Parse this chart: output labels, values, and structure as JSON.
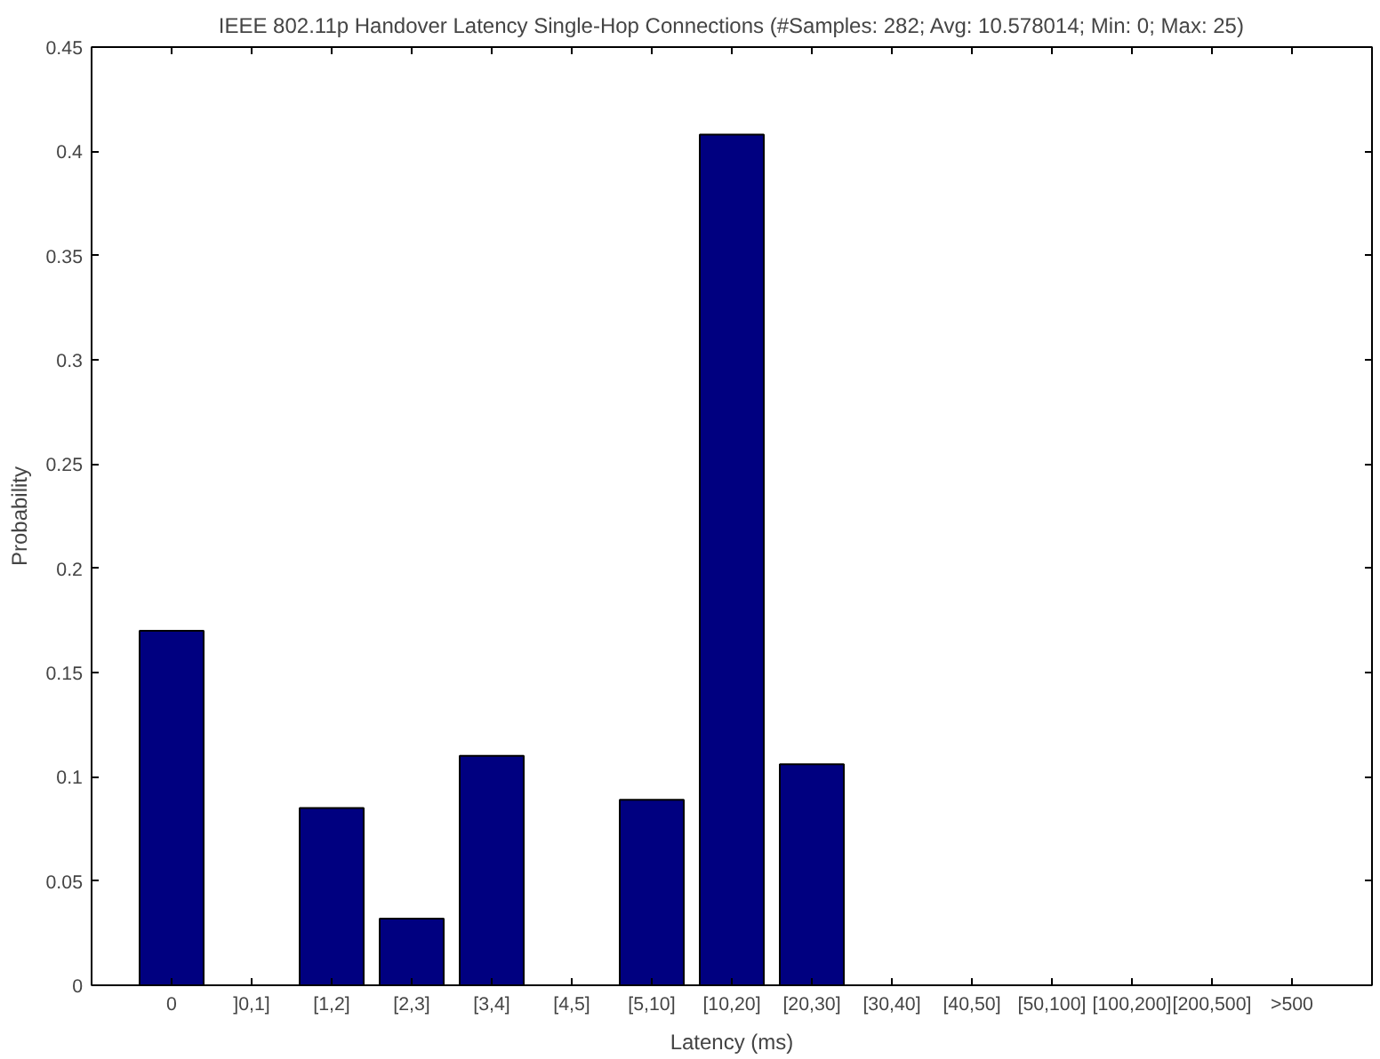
{
  "chart_data": {
    "type": "bar",
    "title": "IEEE 802.11p Handover Latency Single-Hop Connections (#Samples: 282; Avg: 10.578014; Min: 0; Max: 25)",
    "xlabel": "Latency (ms)",
    "ylabel": "Probability",
    "categories": [
      "0",
      "]0,1]",
      "[1,2]",
      "[2,3]",
      "[3,4]",
      "[4,5]",
      "[5,10]",
      "[10,20]",
      "[20,30]",
      "[30,40]",
      "[40,50]",
      "[50,100]",
      "[100,200]",
      "[200,500]",
      ">500"
    ],
    "values": [
      0.17,
      0,
      0.085,
      0.032,
      0.11,
      0,
      0.089,
      0.408,
      0.106,
      0,
      0,
      0,
      0,
      0,
      0
    ],
    "color": "#000080",
    "ylim": [
      0,
      0.45
    ],
    "yticks": [
      0,
      0.05,
      0.1,
      0.15,
      0.2,
      0.25,
      0.3,
      0.35,
      0.4,
      0.45
    ],
    "grid": false
  }
}
